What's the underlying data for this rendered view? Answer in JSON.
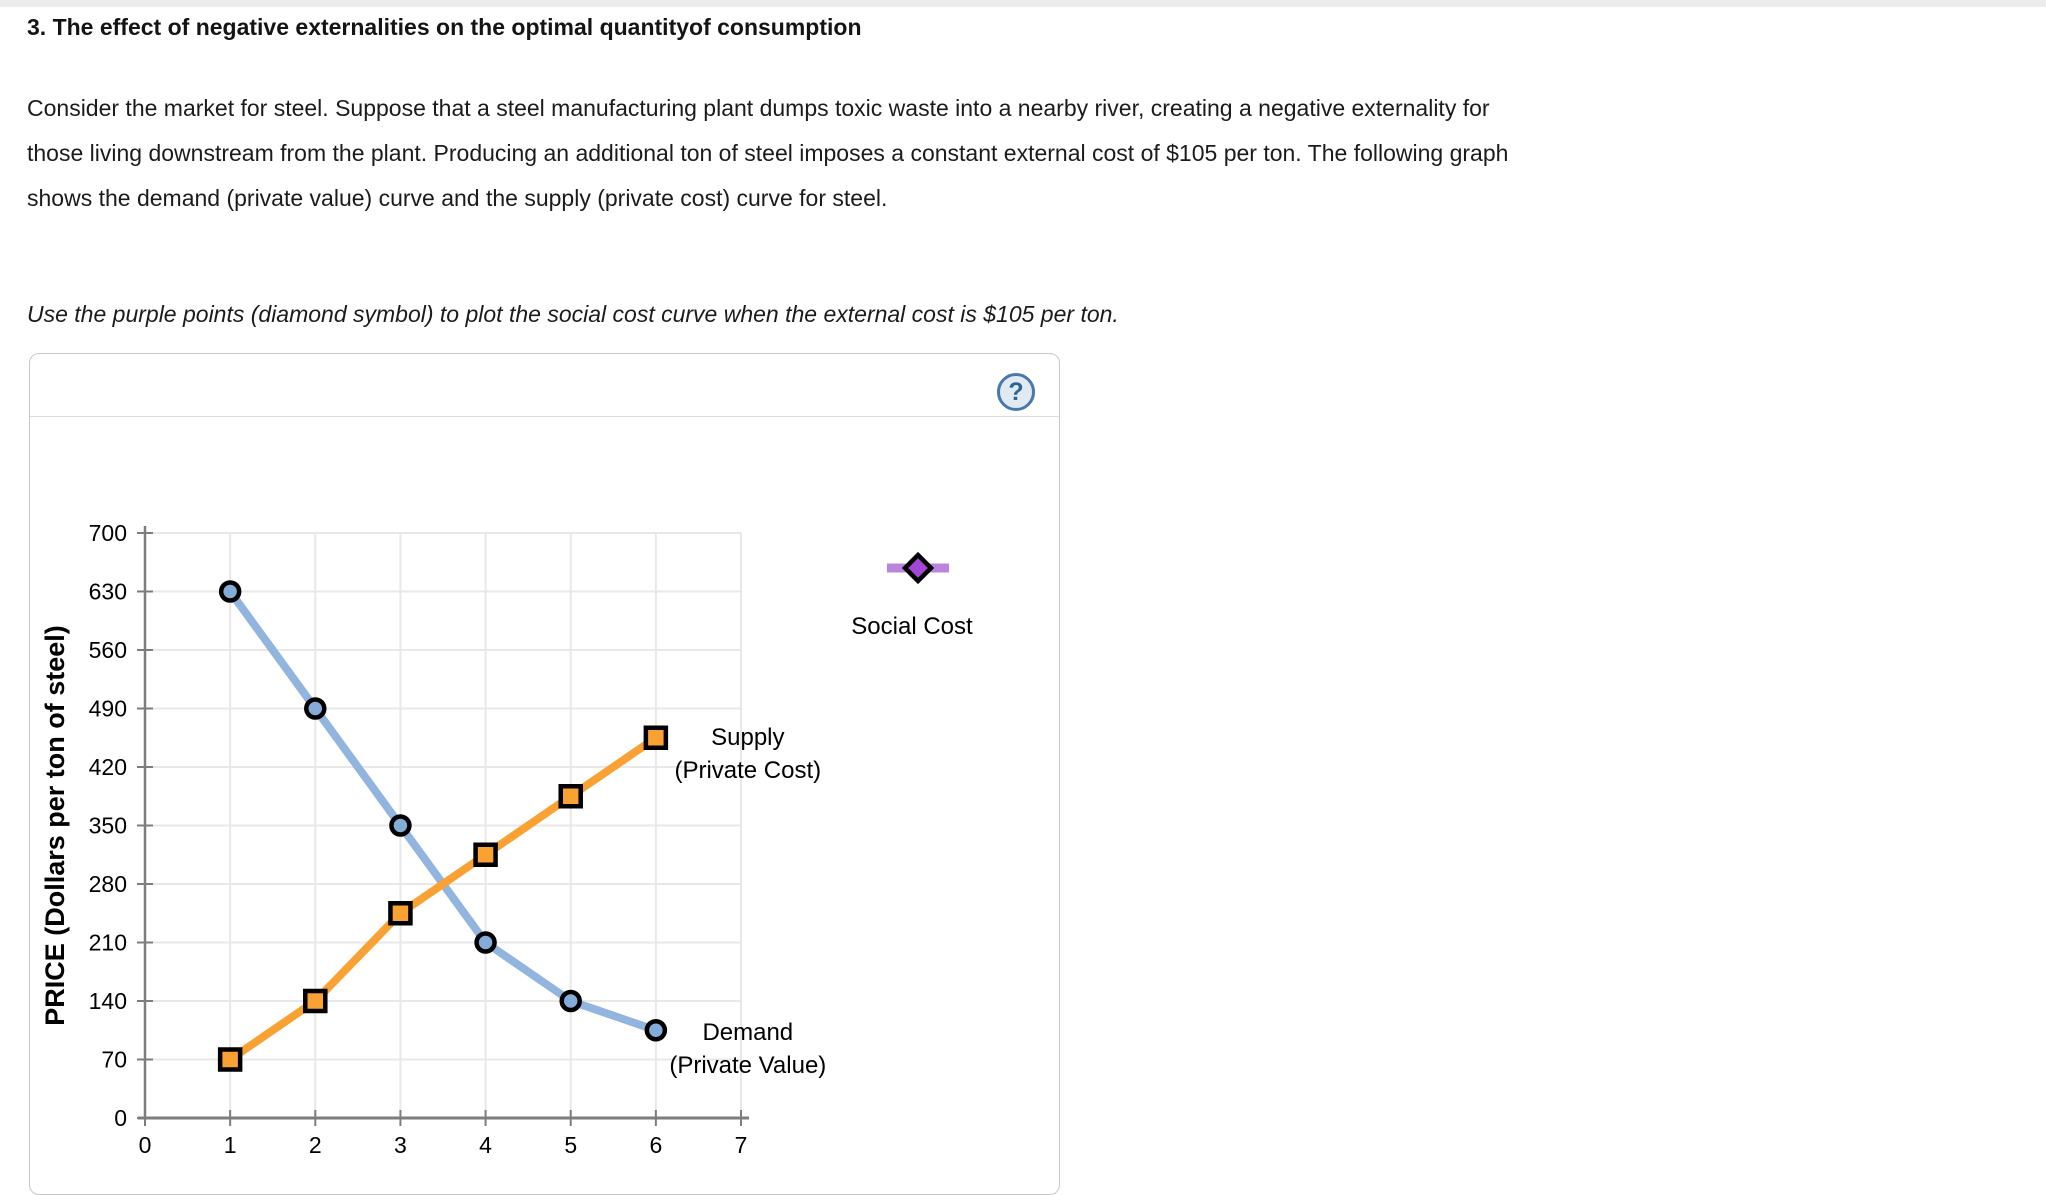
{
  "question": {
    "title": "3. The effect of negative externalities on the optimal quantityof consumption",
    "body": "Consider the market for steel. Suppose that a steel manufacturing plant dumps toxic waste into a nearby river, creating a negative externality for\nthose living downstream from the plant. Producing an additional ton of steel imposes a constant external cost of $105 per ton. The following graph\nshows the demand (private value) curve and the supply (private cost) curve for steel.",
    "instruction": "Use the purple points (diamond symbol) to plot the social cost curve when the external cost is $105 per ton."
  },
  "panel": {
    "help_label": "?"
  },
  "colors": {
    "grid": "#e8e8e8",
    "axis": "#7d7d7d",
    "text": "#000000",
    "panel_border": "#c8c8c8",
    "divider": "#dcdcdc",
    "help_border": "#4878a8",
    "help_bg": "#e1eaf3",
    "help_fg": "#2e6390"
  },
  "chart_data": {
    "type": "line",
    "title": "",
    "xlabel": "",
    "ylabel": "PRICE (Dollars per ton of steel)",
    "xlim": [
      0,
      7
    ],
    "ylim": [
      0,
      700
    ],
    "x_ticks": [
      0,
      1,
      2,
      3,
      4,
      5,
      6,
      7
    ],
    "y_ticks": [
      0,
      70,
      140,
      210,
      280,
      350,
      420,
      490,
      560,
      630,
      700
    ],
    "grid": true,
    "series": [
      {
        "id": "demand",
        "name": "Demand (Private Value)",
        "label_lines": [
          "Demand",
          "(Private Value)"
        ],
        "label_anchor": {
          "x": 7.08,
          "y": 84
        },
        "marker": "circle",
        "line_color": "#92b5df",
        "marker_fill": "#85acd8",
        "x": [
          1,
          2,
          3,
          4,
          5,
          6
        ],
        "y": [
          630,
          490,
          350,
          210,
          140,
          105
        ]
      },
      {
        "id": "supply",
        "name": "Supply (Private Cost)",
        "label_lines": [
          "Supply",
          "(Private Cost)"
        ],
        "label_anchor": {
          "x": 7.08,
          "y": 437
        },
        "marker": "square",
        "line_color": "#f9a133",
        "marker_fill": "#f9a133",
        "x": [
          1,
          2,
          3,
          4,
          5,
          6
        ],
        "y": [
          70,
          140,
          245,
          315,
          385,
          455
        ]
      }
    ],
    "legend": {
      "position": "right",
      "items": [
        {
          "id": "social-cost",
          "name": "Social Cost",
          "marker": "diamond",
          "line_color": "#bb84dc",
          "marker_fill": "#a347d6"
        }
      ]
    }
  }
}
